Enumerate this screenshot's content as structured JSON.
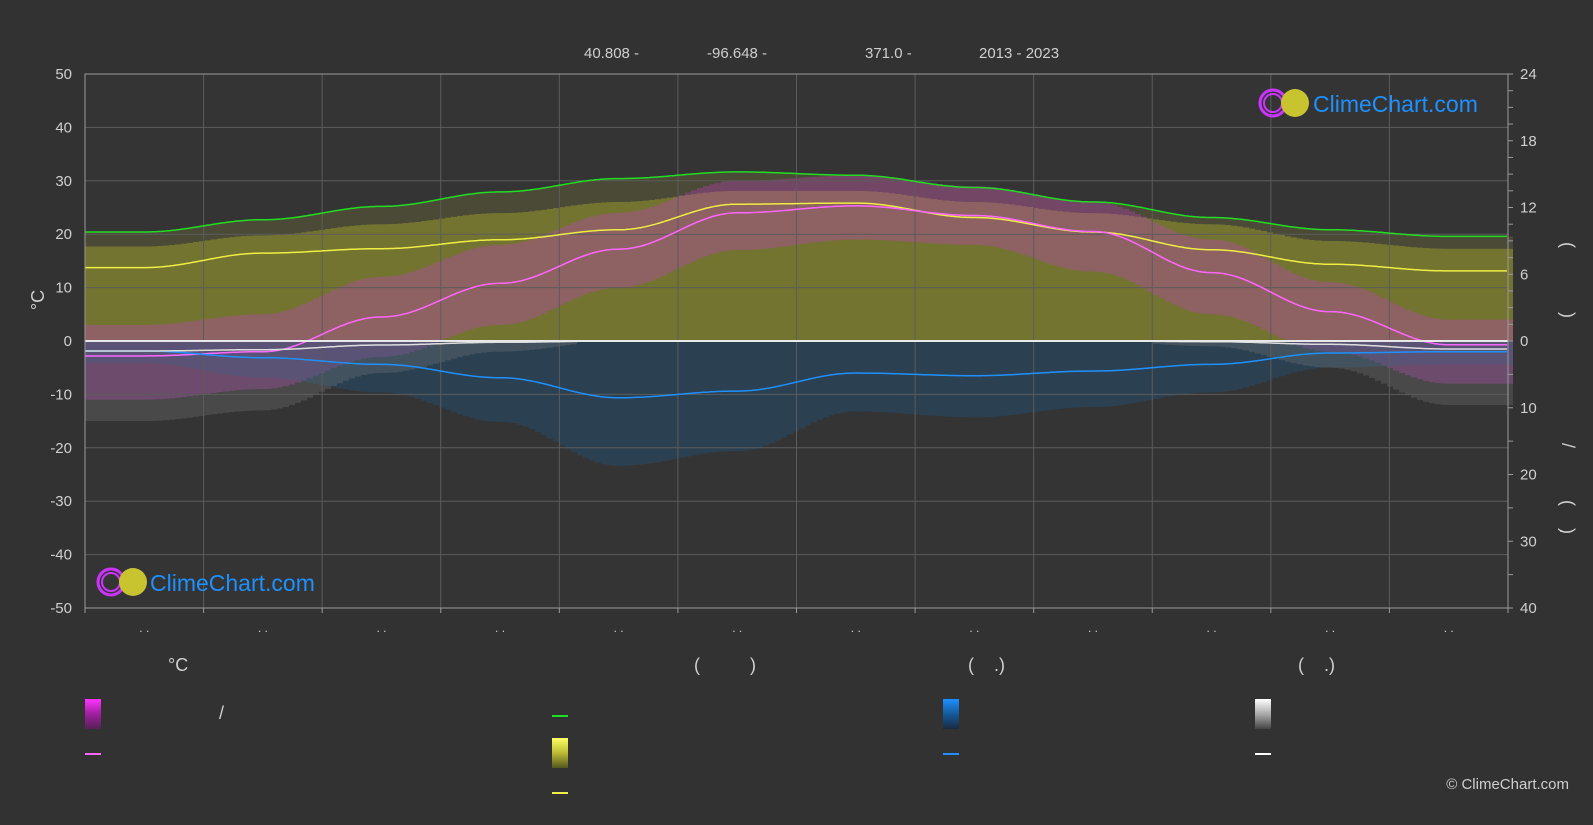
{
  "header": {
    "latitude": "40.808 -",
    "longitude": "-96.648 -",
    "elevation": "371.0 -",
    "years": "2013 - 2023"
  },
  "logo": {
    "text": "ClimeChart.com"
  },
  "copyright": "© ClimeChart.com",
  "legend": {
    "col1_header": "°C",
    "col1_slash": "/",
    "col2_header": "(          )",
    "col3_header": "(    .)",
    "col4_header": "(    .)"
  },
  "colors": {
    "background": "#323232",
    "daylight": "#22dd22",
    "sunshine": "#eeee44",
    "temperature": "#ff66ff",
    "rain": "#1e90ff",
    "snow": "#ffffff",
    "logo_text": "#1e90ff"
  },
  "chart_data": {
    "type": "line",
    "left_axis": {
      "label": "°C",
      "range": [
        -50,
        50
      ],
      "ticks": [
        50,
        40,
        30,
        20,
        10,
        0,
        -10,
        -20,
        -30,
        -40,
        -50
      ]
    },
    "right_axis_top": {
      "range": [
        0,
        24
      ],
      "ticks": [
        24,
        18,
        12,
        6,
        0
      ]
    },
    "right_axis_bottom": {
      "range": [
        0,
        40
      ],
      "ticks": [
        0,
        10,
        20,
        30,
        40
      ]
    },
    "right_axis_label_glyphs": [
      "(",
      ")",
      "/",
      "(",
      "·",
      ")"
    ],
    "x_tick_labels": [
      ". .",
      ". .",
      ". .",
      ". .",
      ". .",
      ". .",
      ". .",
      ". .",
      ". .",
      ". .",
      ". .",
      ". ."
    ],
    "grid": true,
    "series": [
      {
        "key": "daylight",
        "axis": "hours",
        "values": [
          9.8,
          10.9,
          12.1,
          13.4,
          14.6,
          15.2,
          14.9,
          13.8,
          12.5,
          11.1,
          10.0,
          9.4
        ]
      },
      {
        "key": "sunshine",
        "axis": "hours",
        "values": [
          6.6,
          7.9,
          8.3,
          9.1,
          10.0,
          12.3,
          12.4,
          11.1,
          9.8,
          8.2,
          6.9,
          6.3
        ]
      },
      {
        "key": "temperature",
        "axis": "celsius",
        "values": [
          -2.8,
          -2.0,
          4.5,
          10.8,
          17.2,
          24.0,
          25.3,
          23.5,
          20.5,
          12.8,
          5.5,
          -0.7
        ]
      },
      {
        "key": "rain",
        "axis": "mm",
        "values": [
          1.5,
          2.5,
          3.5,
          5.5,
          8.5,
          7.5,
          4.8,
          5.2,
          4.5,
          3.5,
          1.8,
          1.6
        ]
      },
      {
        "key": "snow",
        "axis": "mm",
        "values": [
          1.5,
          1.3,
          0.6,
          0.2,
          0,
          0,
          0,
          0,
          0,
          0.1,
          0.5,
          1.2
        ]
      }
    ],
    "bands": {
      "temp_max": [
        3,
        5,
        12,
        18,
        24,
        30,
        31,
        29,
        26,
        19,
        11,
        4
      ],
      "temp_min": [
        -11,
        -9,
        -3,
        3,
        10,
        17,
        19,
        18,
        13,
        5,
        -2,
        -8
      ],
      "sunshine_top_hours": [
        8.5,
        9.5,
        10.5,
        11.5,
        12.5,
        13.5,
        13.5,
        12.5,
        11.5,
        10.5,
        9,
        8.3
      ]
    }
  }
}
